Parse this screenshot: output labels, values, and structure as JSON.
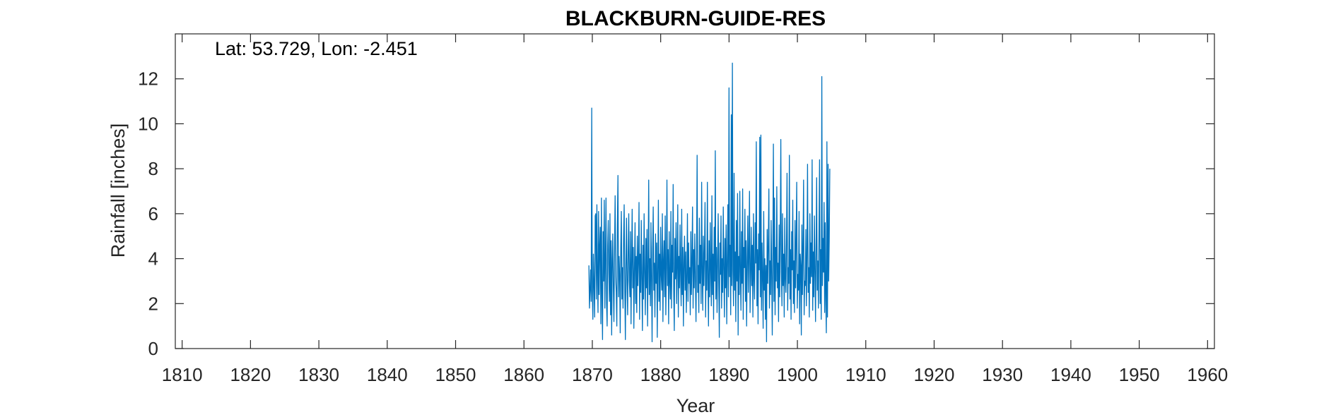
{
  "chart_data": {
    "type": "line",
    "title": "BLACKBURN-GUIDE-RES",
    "annotation": "Lat: 53.729, Lon: -2.451",
    "xlabel": "Year",
    "ylabel": "Rainfall [inches]",
    "xlim": [
      1809,
      1961
    ],
    "ylim": [
      0,
      14
    ],
    "xticks": [
      1810,
      1820,
      1830,
      1840,
      1850,
      1860,
      1870,
      1880,
      1890,
      1900,
      1910,
      1920,
      1930,
      1940,
      1950,
      1960
    ],
    "yticks": [
      0,
      2,
      4,
      6,
      8,
      10,
      12
    ],
    "grid": false,
    "legend": "none",
    "series_color": "#0072BD",
    "series": [
      {
        "start_year": 1869.5,
        "step_years": 0.0833,
        "values": [
          3.7,
          1.8,
          2.6,
          3.5,
          2.1,
          10.7,
          2.5,
          1.3,
          4.2,
          2.9,
          1.4,
          5.9,
          6.0,
          2.2,
          6.4,
          3.1,
          1.6,
          6.1,
          2.4,
          4.6,
          5.4,
          1.1,
          6.7,
          2.3,
          0.4,
          5.2,
          3.0,
          6.6,
          1.8,
          4.0,
          6.7,
          2.0,
          1.0,
          4.6,
          5.7,
          3.3,
          2.1,
          6.0,
          1.5,
          4.8,
          0.6,
          3.9,
          5.1,
          2.7,
          1.2,
          4.4,
          6.8,
          3.2,
          2.5,
          1.0,
          5.5,
          7.7,
          2.3,
          4.1,
          3.3,
          0.7,
          4.5,
          6.1,
          2.2,
          3.6,
          1.8,
          4.9,
          6.4,
          2.6,
          0.4,
          3.7,
          5.8,
          2.9,
          1.5,
          4.3,
          6.0,
          3.0,
          2.3,
          5.2,
          1.1,
          3.8,
          6.2,
          2.7,
          4.5,
          0.9,
          3.4,
          5.6,
          2.0,
          4.1,
          1.6,
          5.0,
          2.8,
          3.9,
          6.5,
          1.3,
          4.2,
          2.5,
          5.7,
          3.1,
          0.8,
          4.6,
          2.2,
          6.0,
          3.5,
          1.5,
          4.9,
          2.7,
          5.3,
          1.0,
          3.6,
          7.5,
          2.4,
          4.0,
          1.9,
          5.6,
          3.2,
          0.3,
          4.4,
          6.3,
          2.6,
          3.8,
          1.4,
          5.1,
          2.9,
          4.7,
          0.5,
          3.5,
          6.6,
          2.1,
          4.2,
          1.7,
          5.4,
          3.3,
          2.6,
          6.0,
          1.2,
          3.9,
          4.8,
          2.3,
          5.9,
          1.5,
          3.6,
          7.5,
          2.8,
          4.4,
          1.1,
          5.2,
          3.0,
          2.2,
          6.1,
          1.8,
          4.6,
          3.4,
          7.3,
          2.5,
          0.8,
          4.9,
          3.1,
          5.6,
          2.0,
          3.7,
          6.4,
          1.4,
          4.1,
          2.7,
          5.5,
          3.3,
          1.9,
          6.2,
          2.4,
          4.5,
          1.0,
          3.8,
          5.0,
          2.6,
          4.3,
          1.6,
          3.2,
          6.0,
          2.1,
          4.7,
          2.9,
          3.6,
          1.5,
          5.2,
          2.4,
          3.9,
          6.3,
          1.8,
          4.4,
          2.7,
          5.1,
          3.3,
          1.2,
          4.0,
          8.6,
          2.5,
          3.7,
          1.6,
          5.8,
          2.9,
          4.6,
          2.0,
          7.4,
          3.4,
          1.7,
          5.0,
          2.8,
          4.3,
          6.5,
          1.4,
          3.9,
          2.6,
          7.4,
          3.1,
          1.0,
          4.8,
          2.3,
          5.6,
          3.5,
          1.9,
          6.8,
          2.4,
          4.2,
          1.3,
          5.4,
          3.0,
          8.8,
          2.2,
          4.5,
          1.6,
          3.8,
          6.0,
          2.9,
          0.5,
          4.7,
          3.3,
          5.9,
          1.8,
          4.0,
          2.5,
          6.3,
          3.6,
          1.4,
          4.9,
          2.7,
          5.5,
          1.1,
          3.9,
          6.4,
          2.3,
          11.6,
          3.2,
          4.6,
          1.5,
          10.4,
          2.8,
          12.7,
          3.5,
          1.9,
          7.8,
          2.6,
          4.3,
          1.2,
          5.7,
          3.0,
          6.9,
          0.6,
          4.1,
          2.4,
          7.0,
          3.4,
          1.7,
          5.2,
          2.9,
          7.1,
          1.3,
          4.5,
          3.6,
          6.2,
          2.1,
          4.8,
          1.0,
          3.9,
          5.9,
          2.5,
          4.2,
          7.0,
          1.6,
          3.3,
          5.4,
          2.8,
          4.6,
          1.4,
          6.0,
          3.1,
          2.2,
          5.6,
          3.8,
          9.2,
          1.9,
          4.4,
          1.1,
          5.1,
          3.5,
          9.4,
          2.3,
          9.5,
          1.7,
          4.7,
          3.2,
          0.9,
          6.1,
          2.6,
          4.0,
          1.3,
          3.7,
          0.3,
          5.3,
          2.9,
          4.6,
          7.1,
          1.8,
          3.9,
          2.4,
          5.7,
          3.3,
          0.6,
          4.3,
          9.1,
          2.1,
          6.7,
          1.5,
          4.5,
          3.0,
          7.2,
          2.7,
          3.8,
          1.2,
          5.5,
          2.3,
          4.9,
          9.3,
          3.4,
          1.9,
          6.0,
          2.8,
          4.2,
          1.4,
          5.8,
          3.1,
          2.5,
          4.7,
          7.8,
          1.7,
          3.6,
          2.9,
          8.6,
          2.2,
          4.4,
          1.3,
          5.2,
          3.5,
          6.6,
          2.0,
          3.9,
          1.6,
          5.7,
          2.7,
          4.8,
          7.4,
          1.8,
          3.3,
          2.6,
          6.1,
          1.1,
          4.2,
          3.7,
          0.6,
          5.5,
          2.4,
          4.6,
          7.5,
          1.5,
          3.0,
          2.8,
          5.3,
          1.9,
          4.1,
          8.2,
          2.5,
          3.6,
          1.4,
          6.0,
          2.9,
          4.7,
          3.2,
          8.4,
          1.7,
          4.3,
          2.3,
          5.9,
          3.5,
          1.2,
          4.5,
          7.6,
          2.6,
          3.9,
          1.8,
          5.1,
          8.4,
          2.0,
          4.4,
          1.3,
          12.1,
          2.8,
          4.9,
          3.4,
          6.5,
          1.6,
          5.6,
          2.2,
          0.7,
          9.2,
          1.4,
          8.2,
          3.0,
          4.8,
          8.0
        ]
      }
    ]
  }
}
